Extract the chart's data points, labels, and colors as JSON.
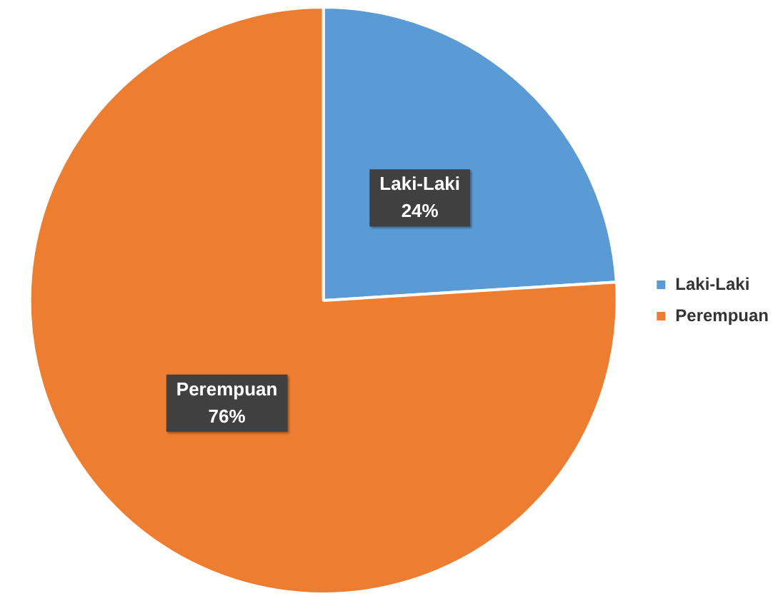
{
  "chart_data": {
    "type": "pie",
    "categories": [
      "Laki-Laki",
      "Perempuan"
    ],
    "values": [
      24,
      76
    ],
    "colors": [
      "#5b9bd5",
      "#ed7d31"
    ],
    "value_labels": [
      "24%",
      "76%"
    ],
    "legend": "right"
  }
}
